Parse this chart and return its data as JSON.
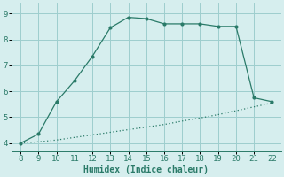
{
  "xlabel": "Humidex (Indice chaleur)",
  "x_upper": [
    8,
    9,
    10,
    11,
    12,
    13,
    14,
    15,
    16,
    17,
    18,
    19,
    20,
    21,
    22
  ],
  "y_upper": [
    4.0,
    4.35,
    5.6,
    6.4,
    7.35,
    8.45,
    8.85,
    8.8,
    8.6,
    8.6,
    8.6,
    8.5,
    8.5,
    5.75,
    5.6
  ],
  "x_lower": [
    8,
    9,
    10,
    11,
    12,
    13,
    14,
    15,
    16,
    17,
    18,
    19,
    20,
    21,
    22
  ],
  "y_lower": [
    4.0,
    4.05,
    4.12,
    4.22,
    4.32,
    4.42,
    4.52,
    4.62,
    4.72,
    4.85,
    4.97,
    5.1,
    5.25,
    5.4,
    5.55
  ],
  "line_color": "#2a7a68",
  "bg_color": "#d6eeee",
  "grid_color": "#9ecece",
  "xlim": [
    7.5,
    22.5
  ],
  "ylim": [
    3.7,
    9.4
  ],
  "xticks": [
    8,
    9,
    10,
    11,
    12,
    13,
    14,
    15,
    16,
    17,
    18,
    19,
    20,
    21,
    22
  ],
  "yticks": [
    4,
    5,
    6,
    7,
    8,
    9
  ]
}
